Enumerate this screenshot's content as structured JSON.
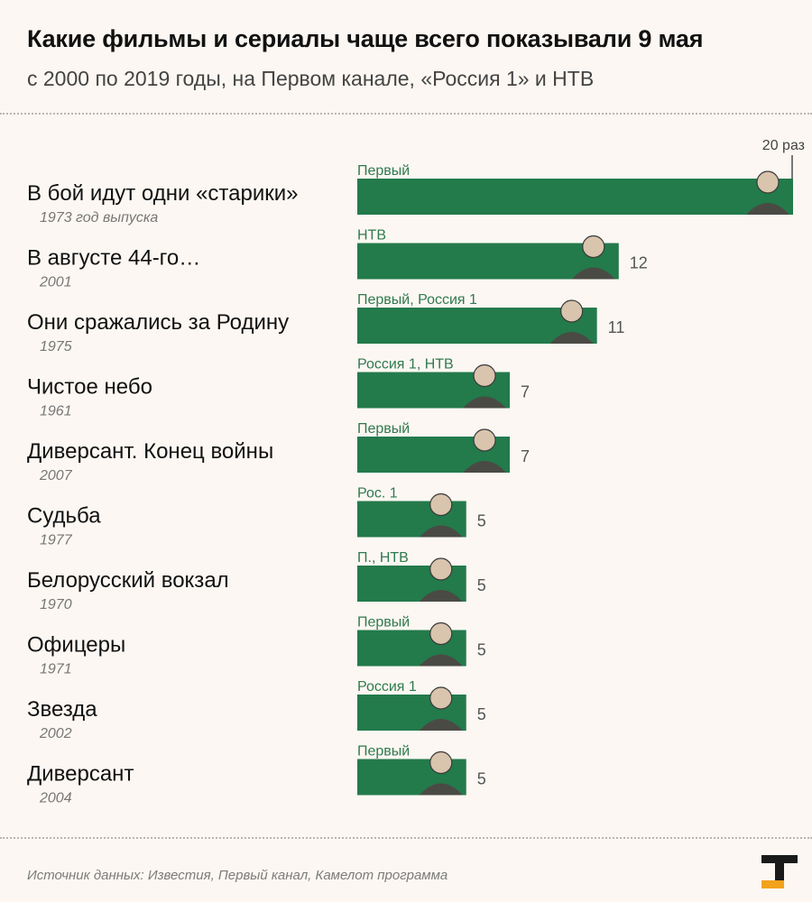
{
  "header": {
    "title": "Какие фильмы и сериалы чаще всего показывали 9 мая",
    "subtitle": "с 2000 по 2019 годы, на Первом канале, «Россия 1» и НТВ"
  },
  "footer": {
    "source": "Источник данных: Известия, Первый канал, Камелот программа"
  },
  "colors": {
    "bar": "#237a4b",
    "channel_label": "#2f7a4f",
    "background": "#fcf7f2",
    "logo_dark": "#1a1a1a",
    "logo_accent": "#f3a21b"
  },
  "chart_data": {
    "type": "bar",
    "orientation": "horizontal",
    "max_label": "20 раз",
    "xlim": [
      0,
      20
    ],
    "items": [
      {
        "title": "В бой идут одни «старики»",
        "year": "1973 год выпуска",
        "channels": "Первый",
        "value": 20,
        "value_label": ""
      },
      {
        "title": "В августе 44-го…",
        "year": "2001",
        "channels": "НТВ",
        "value": 12,
        "value_label": "12"
      },
      {
        "title": "Они сражались за Родину",
        "year": "1975",
        "channels": "Первый, Россия 1",
        "value": 11,
        "value_label": "11"
      },
      {
        "title": "Чистое небо",
        "year": "1961",
        "channels": "Россия 1, НТВ",
        "value": 7,
        "value_label": "7"
      },
      {
        "title": "Диверсант. Конец войны",
        "year": "2007",
        "channels": "Первый",
        "value": 7,
        "value_label": "7"
      },
      {
        "title": "Судьба",
        "year": "1977",
        "channels": "Рос. 1",
        "value": 5,
        "value_label": "5"
      },
      {
        "title": "Белорусский вокзал",
        "year": "1970",
        "channels": "П., НТВ",
        "value": 5,
        "value_label": "5"
      },
      {
        "title": "Офицеры",
        "year": "1971",
        "channels": "Первый",
        "value": 5,
        "value_label": "5"
      },
      {
        "title": "Звезда",
        "year": "2002",
        "channels": "Россия 1",
        "value": 5,
        "value_label": "5"
      },
      {
        "title": "Диверсант",
        "year": "2004",
        "channels": "Первый",
        "value": 5,
        "value_label": "5"
      }
    ]
  }
}
